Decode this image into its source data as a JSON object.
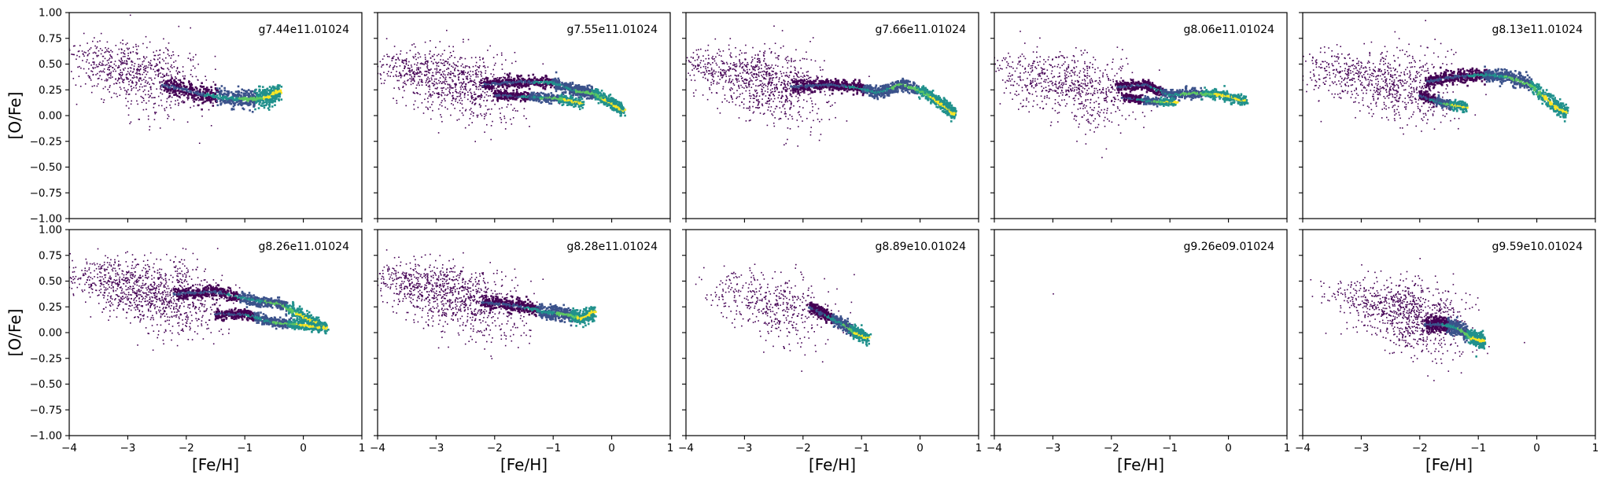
{
  "chart_data": {
    "type": "heatmap",
    "layout": {
      "rows": 2,
      "cols": 5,
      "sharex": true,
      "sharey": true
    },
    "xlabel": "[Fe/H]",
    "ylabel": "[O/Fe]",
    "xlim": [
      -4,
      1
    ],
    "ylim": [
      -1.0,
      1.0
    ],
    "xticks": [
      -4,
      -3,
      -2,
      -1,
      0,
      1
    ],
    "yticks": [
      1.0,
      0.75,
      0.5,
      0.25,
      0.0,
      -0.25,
      -0.5,
      -0.75,
      -1.0
    ],
    "xtick_labels": [
      "−4",
      "−3",
      "−2",
      "−1",
      "0",
      "1"
    ],
    "ytick_labels": [
      "1.00",
      "0.75",
      "0.50",
      "0.25",
      "0.00",
      "−0.25",
      "−0.50",
      "−0.75",
      "−1.00"
    ],
    "colormap": [
      "#440154",
      "#3b528b",
      "#21918c",
      "#5ec962",
      "#fde725"
    ],
    "panels": [
      {
        "title": "g7.44e11.01024",
        "scatter": {
          "x": [
            -3.9,
            -2.2
          ],
          "y": [
            0.62,
            0.28
          ],
          "n": 700
        },
        "branches": [
          {
            "points": [
              [
                -2.4,
                0.3
              ],
              [
                -1.8,
                0.22
              ],
              [
                -1.3,
                0.17
              ],
              [
                -0.9,
                0.16
              ],
              [
                -0.6,
                0.18
              ],
              [
                -0.4,
                0.24
              ]
            ],
            "width": 0.09
          }
        ]
      },
      {
        "title": "g7.55e11.01024",
        "scatter": {
          "x": [
            -3.9,
            -2.0
          ],
          "y": [
            0.52,
            0.22
          ],
          "n": 900
        },
        "branches": [
          {
            "points": [
              [
                -2.2,
                0.3
              ],
              [
                -1.6,
                0.33
              ],
              [
                -1.0,
                0.32
              ],
              [
                -0.6,
                0.24
              ],
              [
                -0.3,
                0.22
              ],
              [
                0.0,
                0.12
              ],
              [
                0.2,
                0.05
              ]
            ],
            "width": 0.06
          },
          {
            "points": [
              [
                -2.0,
                0.2
              ],
              [
                -1.4,
                0.18
              ],
              [
                -0.9,
                0.17
              ],
              [
                -0.5,
                0.12
              ]
            ],
            "width": 0.05
          }
        ]
      },
      {
        "title": "g7.66e11.01024",
        "scatter": {
          "x": [
            -3.9,
            -2.0
          ],
          "y": [
            0.55,
            0.2
          ],
          "n": 900
        },
        "branches": [
          {
            "points": [
              [
                -2.2,
                0.28
              ],
              [
                -1.6,
                0.3
              ],
              [
                -1.1,
                0.28
              ],
              [
                -0.7,
                0.22
              ],
              [
                -0.3,
                0.31
              ],
              [
                0.1,
                0.22
              ],
              [
                0.4,
                0.1
              ],
              [
                0.6,
                0.02
              ]
            ],
            "width": 0.06
          }
        ]
      },
      {
        "title": "g8.06e11.01024",
        "scatter": {
          "x": [
            -3.9,
            -2.0
          ],
          "y": [
            0.48,
            0.18
          ],
          "n": 700
        },
        "branches": [
          {
            "points": [
              [
                -1.9,
                0.28
              ],
              [
                -1.4,
                0.3
              ],
              [
                -1.0,
                0.2
              ],
              [
                -0.6,
                0.22
              ],
              [
                -0.1,
                0.2
              ],
              [
                0.3,
                0.14
              ]
            ],
            "width": 0.05
          },
          {
            "points": [
              [
                -1.8,
                0.18
              ],
              [
                -1.3,
                0.14
              ],
              [
                -0.9,
                0.13
              ]
            ],
            "width": 0.04
          }
        ]
      },
      {
        "title": "g8.13e11.01024",
        "scatter": {
          "x": [
            -3.9,
            -1.8
          ],
          "y": [
            0.5,
            0.22
          ],
          "n": 800
        },
        "branches": [
          {
            "points": [
              [
                -1.9,
                0.33
              ],
              [
                -1.4,
                0.38
              ],
              [
                -0.9,
                0.4
              ],
              [
                -0.5,
                0.38
              ],
              [
                -0.1,
                0.3
              ],
              [
                0.3,
                0.1
              ],
              [
                0.5,
                0.03
              ]
            ],
            "width": 0.07
          },
          {
            "points": [
              [
                -2.0,
                0.2
              ],
              [
                -1.6,
                0.12
              ],
              [
                -1.2,
                0.08
              ]
            ],
            "width": 0.05
          }
        ]
      },
      {
        "title": "g8.26e11.01024",
        "scatter": {
          "x": [
            -3.9,
            -1.8
          ],
          "y": [
            0.6,
            0.25
          ],
          "n": 1100
        },
        "branches": [
          {
            "points": [
              [
                -2.2,
                0.38
              ],
              [
                -1.5,
                0.4
              ],
              [
                -0.9,
                0.32
              ],
              [
                -0.4,
                0.28
              ],
              [
                0.0,
                0.16
              ],
              [
                0.4,
                0.04
              ]
            ],
            "width": 0.06
          },
          {
            "points": [
              [
                -1.5,
                0.18
              ],
              [
                -1.0,
                0.18
              ],
              [
                -0.5,
                0.1
              ],
              [
                -0.1,
                0.08
              ],
              [
                0.3,
                0.05
              ]
            ],
            "width": 0.05
          }
        ]
      },
      {
        "title": "g8.28e11.01024",
        "scatter": {
          "x": [
            -3.9,
            -2.0
          ],
          "y": [
            0.58,
            0.22
          ],
          "n": 1000
        },
        "branches": [
          {
            "points": [
              [
                -2.2,
                0.3
              ],
              [
                -1.6,
                0.26
              ],
              [
                -1.1,
                0.2
              ],
              [
                -0.8,
                0.18
              ],
              [
                -0.5,
                0.14
              ],
              [
                -0.3,
                0.2
              ]
            ],
            "width": 0.07
          }
        ]
      },
      {
        "title": "g8.89e10.01024",
        "scatter": {
          "x": [
            -3.5,
            -1.8
          ],
          "y": [
            0.45,
            0.15
          ],
          "n": 450
        },
        "branches": [
          {
            "points": [
              [
                -1.9,
                0.25
              ],
              [
                -1.6,
                0.17
              ],
              [
                -1.3,
                0.08
              ],
              [
                -1.1,
                0.0
              ],
              [
                -0.9,
                -0.05
              ]
            ],
            "width": 0.06
          }
        ]
      },
      {
        "title": "g9.26e09.01024",
        "scatter": {
          "x": [
            -3.0,
            -3.0
          ],
          "y": [
            0.3,
            0.3
          ],
          "n": 1
        },
        "branches": []
      },
      {
        "title": "g9.59e10.01024",
        "scatter": {
          "x": [
            -3.2,
            -1.6
          ],
          "y": [
            0.4,
            0.05
          ],
          "n": 900
        },
        "branches": [
          {
            "points": [
              [
                -1.9,
                0.08
              ],
              [
                -1.6,
                0.08
              ],
              [
                -1.35,
                0.05
              ],
              [
                -1.1,
                -0.05
              ],
              [
                -0.9,
                -0.08
              ]
            ],
            "width": 0.08
          }
        ]
      }
    ]
  }
}
